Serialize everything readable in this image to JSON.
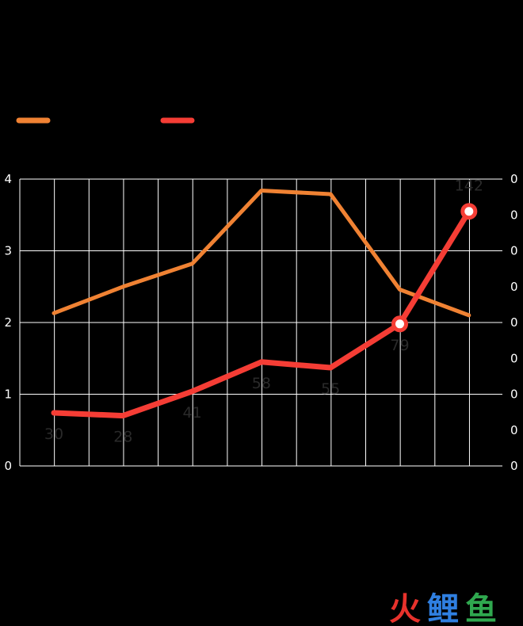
{
  "chart_data": {
    "type": "line",
    "categories": [
      "",
      "",
      "",
      "",
      "",
      "",
      ""
    ],
    "y_left": {
      "ticks": [
        "0",
        "1",
        "2",
        "3",
        "4"
      ],
      "lim": [
        0,
        4
      ]
    },
    "y_right": {
      "ticks": [
        "0",
        "0",
        "0",
        "0",
        "0",
        "0",
        "0",
        "0",
        "0"
      ]
    },
    "grid": true,
    "legend": "top-left",
    "series": [
      {
        "axis": "left",
        "color": "#F08233",
        "values": [
          2.13,
          2.5,
          2.82,
          3.84,
          3.79,
          2.46,
          2.1
        ]
      },
      {
        "axis": "right",
        "color": "#F53D35",
        "values": [
          30,
          28,
          41,
          58,
          55,
          79,
          142
        ],
        "labels": [
          "30",
          "28",
          "41",
          "58",
          "55",
          "79",
          "142"
        ],
        "plotted_level": [
          0.74,
          0.7,
          1.04,
          1.45,
          1.37,
          1.98,
          3.55
        ],
        "markers": [
          false,
          false,
          false,
          false,
          false,
          true,
          true
        ]
      }
    ]
  },
  "watermark": {
    "chars": [
      "火",
      "鲤",
      "鱼"
    ],
    "colors": [
      "#E8322C",
      "#2F7FE0",
      "#2FA84F"
    ]
  }
}
